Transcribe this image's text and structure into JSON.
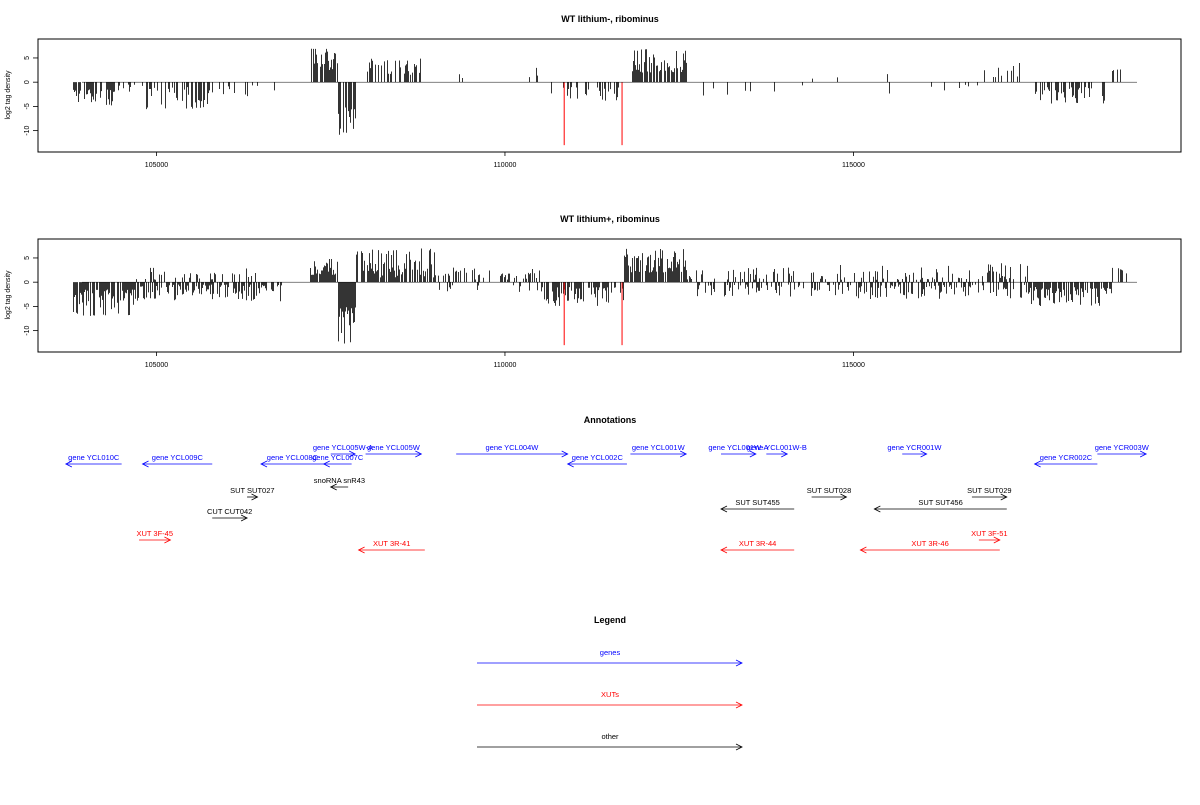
{
  "panels": [
    {
      "title": "WT lithium-, ribominus",
      "ylabel": "log2 tag density",
      "yticks": [
        "5",
        "0",
        "-5",
        "-10"
      ],
      "xticks": [
        "105000",
        "110000",
        "115000"
      ]
    },
    {
      "title": "WT lithium+, ribominus",
      "ylabel": "log2 tag density",
      "yticks": [
        "5",
        "0",
        "-5",
        "-10"
      ],
      "xticks": [
        "105000",
        "110000",
        "115000"
      ]
    }
  ],
  "annotations": {
    "title": "Annotations",
    "items": [
      {
        "label": "gene YCL010C",
        "color": "#0000ff",
        "strand": "-",
        "start": 103700,
        "end": 104500
      },
      {
        "label": "gene YCL009C",
        "color": "#0000ff",
        "strand": "-",
        "start": 104800,
        "end": 105800
      },
      {
        "label": "gene YCL008C",
        "color": "#0000ff",
        "strand": "-",
        "start": 106500,
        "end": 107400
      },
      {
        "label": "gene YCL007C",
        "color": "#0000ff",
        "strand": "-",
        "start": 107400,
        "end": 107800
      },
      {
        "label": "gene YCL005W-A",
        "color": "#0000ff",
        "strand": "+",
        "start": 107500,
        "end": 107850
      },
      {
        "label": "gene YCL005W",
        "color": "#0000ff",
        "strand": "+",
        "start": 108000,
        "end": 108800
      },
      {
        "label": "gene YCL004W",
        "color": "#0000ff",
        "strand": "+",
        "start": 109300,
        "end": 110900
      },
      {
        "label": "gene YCL002C",
        "color": "#0000ff",
        "strand": "-",
        "start": 110900,
        "end": 111750
      },
      {
        "label": "gene YCL001W",
        "color": "#0000ff",
        "strand": "+",
        "start": 111800,
        "end": 112600
      },
      {
        "label": "gene YCL001W-A",
        "color": "#0000ff",
        "strand": "+",
        "start": 113100,
        "end": 113600
      },
      {
        "label": "gene YCL001W-B",
        "color": "#0000ff",
        "strand": "+",
        "start": 113750,
        "end": 114050
      },
      {
        "label": "gene YCR001W",
        "color": "#0000ff",
        "strand": "+",
        "start": 115700,
        "end": 116050
      },
      {
        "label": "gene YCR002C",
        "color": "#0000ff",
        "strand": "-",
        "start": 117600,
        "end": 118500
      },
      {
        "label": "gene YCR003W",
        "color": "#0000ff",
        "strand": "+",
        "start": 118500,
        "end": 119200
      },
      {
        "label": "snoRNA snR43",
        "color": "#000000",
        "strand": "-",
        "start": 107500,
        "end": 107750
      },
      {
        "label": "SUT SUT027",
        "color": "#000000",
        "strand": "+",
        "start": 106300,
        "end": 106450
      },
      {
        "label": "CUT CUT042",
        "color": "#000000",
        "strand": "+",
        "start": 105800,
        "end": 106300
      },
      {
        "label": "SUT SUT455",
        "color": "#000000",
        "strand": "-",
        "start": 113100,
        "end": 114150
      },
      {
        "label": "SUT SUT028",
        "color": "#000000",
        "strand": "+",
        "start": 114400,
        "end": 114900
      },
      {
        "label": "SUT SUT456",
        "color": "#000000",
        "strand": "-",
        "start": 115300,
        "end": 117200
      },
      {
        "label": "SUT SUT029",
        "color": "#000000",
        "strand": "+",
        "start": 116700,
        "end": 117200
      },
      {
        "label": "XUT 3F-45",
        "color": "#ff0000",
        "strand": "+",
        "start": 104750,
        "end": 105200
      },
      {
        "label": "XUT 3R-41",
        "color": "#ff0000",
        "strand": "-",
        "start": 107900,
        "end": 108850
      },
      {
        "label": "XUT 3R-44",
        "color": "#ff0000",
        "strand": "-",
        "start": 113100,
        "end": 114150
      },
      {
        "label": "XUT 3R-46",
        "color": "#ff0000",
        "strand": "-",
        "start": 115100,
        "end": 117100
      },
      {
        "label": "XUT 3F-51",
        "color": "#ff0000",
        "strand": "+",
        "start": 116800,
        "end": 117100
      }
    ]
  },
  "legend": {
    "title": "Legend",
    "items": [
      {
        "label": "genes",
        "color": "#0000ff"
      },
      {
        "label": "XUTs",
        "color": "#ff0000"
      },
      {
        "label": "other",
        "color": "#000000"
      }
    ]
  },
  "chart_data": [
    {
      "type": "bar",
      "title": "WT lithium-, ribominus",
      "xlabel": "",
      "ylabel": "log2 tag density",
      "xlim": [
        103300,
        119700
      ],
      "ylim": [
        -14,
        8.5
      ],
      "x_ticks": [
        105000,
        110000,
        115000
      ],
      "y_ticks": [
        5,
        0,
        -5,
        -10
      ],
      "highlight_color": "#ff0000",
      "highlight_bars": [
        {
          "x": 110850,
          "y": -13
        },
        {
          "x": 111680,
          "y": -13
        }
      ],
      "regions": [
        {
          "start": 103800,
          "end": 104400,
          "sign": -1,
          "min": 1.5,
          "max": 5,
          "density": 0.55
        },
        {
          "start": 104400,
          "end": 104800,
          "sign": -1,
          "min": 0.5,
          "max": 2,
          "density": 0.2
        },
        {
          "start": 104800,
          "end": 105800,
          "sign": -1,
          "min": 1,
          "max": 6,
          "density": 0.55
        },
        {
          "start": 105800,
          "end": 106800,
          "sign": -1,
          "min": 0.5,
          "max": 3,
          "density": 0.12
        },
        {
          "start": 107200,
          "end": 107600,
          "sign": 1,
          "min": 2,
          "max": 7,
          "density": 0.7
        },
        {
          "start": 107600,
          "end": 107850,
          "sign": -1,
          "min": 5,
          "max": 12,
          "density": 0.9
        },
        {
          "start": 108000,
          "end": 108800,
          "sign": 1,
          "min": 1.5,
          "max": 5,
          "density": 0.55
        },
        {
          "start": 109300,
          "end": 109800,
          "sign": 1,
          "min": 0.5,
          "max": 2,
          "density": 0.04
        },
        {
          "start": 110300,
          "end": 110500,
          "sign": 1,
          "min": 1,
          "max": 3,
          "density": 0.15
        },
        {
          "start": 110600,
          "end": 111200,
          "sign": -1,
          "min": 1,
          "max": 3.5,
          "density": 0.35
        },
        {
          "start": 111300,
          "end": 111650,
          "sign": -1,
          "min": 1,
          "max": 4,
          "density": 0.4
        },
        {
          "start": 111800,
          "end": 112600,
          "sign": 1,
          "min": 2,
          "max": 7,
          "density": 0.8
        },
        {
          "start": 112800,
          "end": 114400,
          "sign": -1,
          "min": 0.5,
          "max": 3,
          "density": 0.1
        },
        {
          "start": 114400,
          "end": 115500,
          "sign": 1,
          "min": 0.5,
          "max": 2,
          "density": 0.05
        },
        {
          "start": 115500,
          "end": 116800,
          "sign": -1,
          "min": 0.5,
          "max": 3,
          "density": 0.12
        },
        {
          "start": 116800,
          "end": 117400,
          "sign": 1,
          "min": 1,
          "max": 4,
          "density": 0.2
        },
        {
          "start": 117600,
          "end": 118600,
          "sign": -1,
          "min": 1,
          "max": 4.5,
          "density": 0.5
        },
        {
          "start": 118700,
          "end": 118950,
          "sign": 1,
          "min": 2,
          "max": 3,
          "density": 0.2
        }
      ]
    },
    {
      "type": "bar",
      "title": "WT lithium+, ribominus",
      "xlabel": "",
      "ylabel": "log2 tag density",
      "xlim": [
        103300,
        119700
      ],
      "ylim": [
        -14,
        8.5
      ],
      "x_ticks": [
        105000,
        110000,
        115000
      ],
      "y_ticks": [
        5,
        0,
        -5,
        -10
      ],
      "highlight_color": "#ff0000",
      "highlight_bars": [
        {
          "x": 110850,
          "y": -13
        },
        {
          "x": 111680,
          "y": -13
        }
      ],
      "regions": [
        {
          "start": 103800,
          "end": 104700,
          "sign": -1,
          "min": 1.5,
          "max": 7,
          "density": 0.85
        },
        {
          "start": 104700,
          "end": 106800,
          "sign": -1,
          "min": 0.5,
          "max": 4,
          "density": 0.6
        },
        {
          "start": 104700,
          "end": 106500,
          "sign": 1,
          "min": 0.5,
          "max": 3,
          "density": 0.3
        },
        {
          "start": 107200,
          "end": 107600,
          "sign": 1,
          "min": 1.5,
          "max": 6,
          "density": 0.85
        },
        {
          "start": 107600,
          "end": 107850,
          "sign": -1,
          "min": 4,
          "max": 13,
          "density": 0.95
        },
        {
          "start": 107850,
          "end": 109000,
          "sign": 1,
          "min": 1,
          "max": 7,
          "density": 0.8
        },
        {
          "start": 109000,
          "end": 110500,
          "sign": 1,
          "min": 0.5,
          "max": 3,
          "density": 0.3
        },
        {
          "start": 109000,
          "end": 110500,
          "sign": -1,
          "min": 0.5,
          "max": 2,
          "density": 0.15
        },
        {
          "start": 110500,
          "end": 111700,
          "sign": -1,
          "min": 1,
          "max": 5,
          "density": 0.6
        },
        {
          "start": 111700,
          "end": 112600,
          "sign": 1,
          "min": 2,
          "max": 7,
          "density": 0.85
        },
        {
          "start": 112600,
          "end": 114600,
          "sign": 1,
          "min": 0.5,
          "max": 3,
          "density": 0.3
        },
        {
          "start": 112600,
          "end": 114600,
          "sign": -1,
          "min": 0.5,
          "max": 3,
          "density": 0.3
        },
        {
          "start": 114600,
          "end": 117500,
          "sign": 1,
          "min": 0.5,
          "max": 4,
          "density": 0.35
        },
        {
          "start": 114600,
          "end": 117500,
          "sign": -1,
          "min": 0.5,
          "max": 3.5,
          "density": 0.4
        },
        {
          "start": 117500,
          "end": 118700,
          "sign": -1,
          "min": 1,
          "max": 5,
          "density": 0.75
        },
        {
          "start": 118700,
          "end": 118950,
          "sign": 1,
          "min": 1.5,
          "max": 3,
          "density": 0.4
        }
      ]
    }
  ]
}
